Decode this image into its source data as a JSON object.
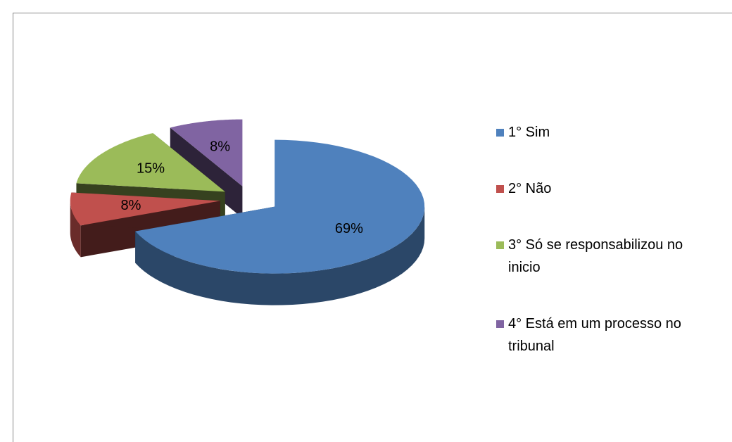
{
  "chart_data": {
    "type": "pie3d",
    "categories": [
      "1° Sim",
      "2° Não",
      "3° Só se responsabilizou no inicio",
      "4° Está em um processo no tribunal"
    ],
    "values": [
      69,
      8,
      15,
      8
    ],
    "value_labels": [
      "69%",
      "8%",
      "15%",
      "8%"
    ],
    "colors": [
      "#4f81bd",
      "#c0504d",
      "#9bbb59",
      "#8064a2"
    ],
    "legend": "right"
  }
}
